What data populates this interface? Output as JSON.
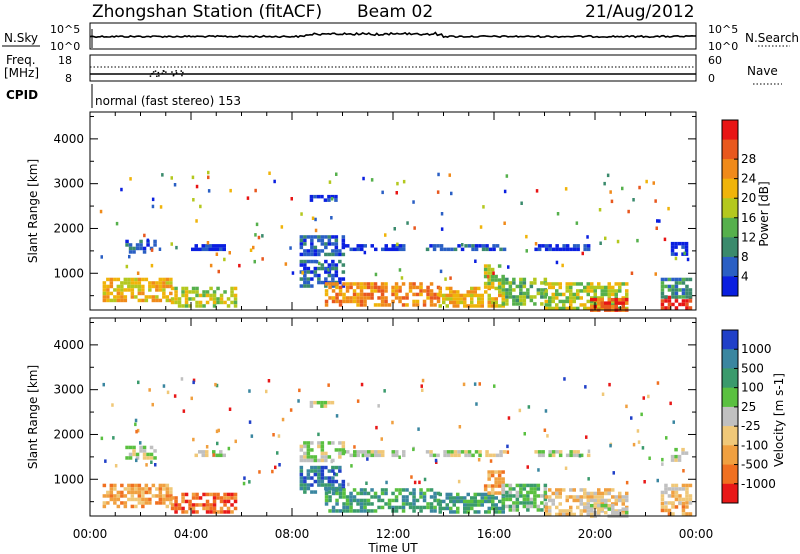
{
  "header": {
    "title": "Zhongshan Station (fitACF)",
    "beam": "Beam 02",
    "date": "21/Aug/2012"
  },
  "sky_panel": {
    "left_label": "N.Sky",
    "right_label": "N.Search",
    "left_ticks": [
      "10^5",
      "10^0"
    ],
    "right_ticks": [
      "10^5",
      "10^0"
    ]
  },
  "freq_panel": {
    "left_label_line1": "Freq.",
    "left_label_line2": "[MHz]",
    "right_label": "Nave",
    "left_ticks": [
      "18",
      "8"
    ],
    "right_ticks": [
      "60",
      "0"
    ]
  },
  "cpid": {
    "label": "CPID",
    "text": "normal (fast stereo) 153"
  },
  "colors": {
    "power_scale": [
      "#0a1fe0",
      "#2a5fc4",
      "#3a8a6c",
      "#56b04c",
      "#b4c81e",
      "#f0b40a",
      "#f08a1a",
      "#e8581e",
      "#e81414"
    ],
    "velocity_scale": [
      "#2040c8",
      "#3a86a0",
      "#3a9a6c",
      "#5ac040",
      "#c0c0c0",
      "#f0c878",
      "#f0a040",
      "#f07020",
      "#e81818"
    ]
  },
  "chart_data": [
    {
      "type": "heatmap",
      "name": "power",
      "xlabel": "",
      "ylabel": "Slant Range [km]",
      "x_range_hours": [
        0,
        24
      ],
      "ylim": [
        180,
        4600
      ],
      "y_ticks": [
        "1000",
        "2000",
        "3000",
        "4000"
      ],
      "colorbar_label": "Power [dB]",
      "colorbar_ticks": [
        "4",
        "8",
        "12",
        "16",
        "20",
        "24",
        "28"
      ],
      "echo_regions": [
        {
          "t0": 0.5,
          "t1": 3.2,
          "r0": 400,
          "r1": 900,
          "level": 5
        },
        {
          "t0": 3.2,
          "t1": 5.8,
          "r0": 300,
          "r1": 700,
          "level": 4
        },
        {
          "t0": 1.4,
          "t1": 2.6,
          "r0": 1450,
          "r1": 1750,
          "level": 1
        },
        {
          "t0": 4.0,
          "t1": 5.3,
          "r0": 1500,
          "r1": 1650,
          "level": 0
        },
        {
          "t0": 8.3,
          "t1": 10.0,
          "r0": 1450,
          "r1": 1850,
          "level": 1
        },
        {
          "t0": 8.7,
          "t1": 9.8,
          "r0": 2650,
          "r1": 2750,
          "level": 0
        },
        {
          "t0": 8.3,
          "t1": 10.0,
          "r0": 700,
          "r1": 1300,
          "level": 1
        },
        {
          "t0": 9.3,
          "t1": 13.8,
          "r0": 300,
          "r1": 800,
          "level": 6
        },
        {
          "t0": 10.0,
          "t1": 12.4,
          "r0": 1500,
          "r1": 1650,
          "level": 0
        },
        {
          "t0": 13.3,
          "t1": 16.4,
          "r0": 1500,
          "r1": 1650,
          "level": 1
        },
        {
          "t0": 13.8,
          "t1": 16.3,
          "r0": 300,
          "r1": 700,
          "level": 5
        },
        {
          "t0": 15.6,
          "t1": 16.3,
          "r0": 700,
          "r1": 1200,
          "level": 4
        },
        {
          "t0": 16.3,
          "t1": 18.0,
          "r0": 300,
          "r1": 900,
          "level": 3
        },
        {
          "t0": 18.0,
          "t1": 21.3,
          "r0": 200,
          "r1": 800,
          "level": 4
        },
        {
          "t0": 17.6,
          "t1": 19.8,
          "r0": 1550,
          "r1": 1650,
          "level": 0
        },
        {
          "t0": 19.8,
          "t1": 21.3,
          "r0": 200,
          "r1": 450,
          "level": 7
        },
        {
          "t0": 22.6,
          "t1": 23.8,
          "r0": 200,
          "r1": 500,
          "level": 8
        },
        {
          "t0": 22.6,
          "t1": 23.8,
          "r0": 500,
          "r1": 900,
          "level": 2
        },
        {
          "t0": 23.0,
          "t1": 23.6,
          "r0": 1400,
          "r1": 1700,
          "level": 0
        }
      ]
    },
    {
      "type": "heatmap",
      "name": "velocity",
      "xlabel": "Time UT",
      "ylabel": "Slant Range [km]",
      "x_range_hours": [
        0,
        24
      ],
      "ylim": [
        180,
        4600
      ],
      "x_ticks": [
        "00:00",
        "04:00",
        "08:00",
        "12:00",
        "16:00",
        "20:00",
        "00:00"
      ],
      "y_ticks": [
        "1000",
        "2000",
        "3000",
        "4000"
      ],
      "colorbar_label": "Velocity [m s-1]",
      "colorbar_ticks": [
        "1000",
        "500",
        "100",
        "25",
        "-25",
        "-100",
        "-500",
        "-1000"
      ],
      "echo_regions": [
        {
          "t0": 0.5,
          "t1": 3.2,
          "r0": 400,
          "r1": 900,
          "level": 6
        },
        {
          "t0": 3.2,
          "t1": 5.8,
          "r0": 300,
          "r1": 700,
          "level": 7
        },
        {
          "t0": 1.4,
          "t1": 2.6,
          "r0": 1450,
          "r1": 1750,
          "level": 4
        },
        {
          "t0": 4.0,
          "t1": 5.3,
          "r0": 1500,
          "r1": 1650,
          "level": 4
        },
        {
          "t0": 8.3,
          "t1": 10.0,
          "r0": 1450,
          "r1": 1850,
          "level": 4
        },
        {
          "t0": 8.7,
          "t1": 9.8,
          "r0": 2650,
          "r1": 2750,
          "level": 4
        },
        {
          "t0": 8.3,
          "t1": 10.0,
          "r0": 700,
          "r1": 1300,
          "level": 1
        },
        {
          "t0": 9.3,
          "t1": 13.8,
          "r0": 300,
          "r1": 800,
          "level": 2
        },
        {
          "t0": 10.0,
          "t1": 12.4,
          "r0": 1500,
          "r1": 1650,
          "level": 4
        },
        {
          "t0": 13.3,
          "t1": 16.4,
          "r0": 1500,
          "r1": 1650,
          "level": 4
        },
        {
          "t0": 13.8,
          "t1": 16.3,
          "r0": 300,
          "r1": 700,
          "level": 2
        },
        {
          "t0": 15.6,
          "t1": 16.3,
          "r0": 700,
          "r1": 1200,
          "level": 6
        },
        {
          "t0": 16.3,
          "t1": 18.0,
          "r0": 300,
          "r1": 900,
          "level": 3
        },
        {
          "t0": 18.0,
          "t1": 21.3,
          "r0": 200,
          "r1": 800,
          "level": 5
        },
        {
          "t0": 17.6,
          "t1": 19.8,
          "r0": 1550,
          "r1": 1650,
          "level": 4
        },
        {
          "t0": 19.8,
          "t1": 21.3,
          "r0": 200,
          "r1": 450,
          "level": 4
        },
        {
          "t0": 22.6,
          "t1": 23.8,
          "r0": 200,
          "r1": 500,
          "level": 6
        },
        {
          "t0": 22.6,
          "t1": 23.8,
          "r0": 500,
          "r1": 900,
          "level": 5
        },
        {
          "t0": 23.0,
          "t1": 23.6,
          "r0": 1400,
          "r1": 1700,
          "level": 4
        }
      ]
    }
  ]
}
